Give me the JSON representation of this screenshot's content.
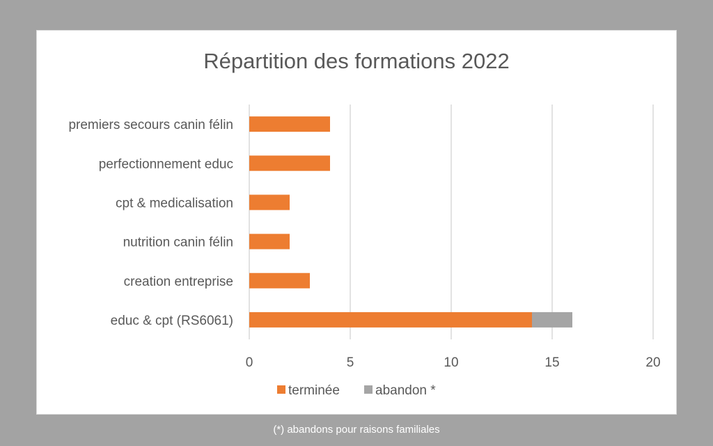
{
  "title": "Répartition des formations 2022",
  "footnote": "(*) abandons  pour raisons familiales",
  "chart_data": {
    "type": "bar",
    "orientation": "horizontal",
    "stacked": true,
    "title": "Répartition des formations 2022",
    "categories": [
      "premiers secours canin félin",
      "perfectionnement educ",
      "cpt & medicalisation",
      "nutrition canin félin",
      "creation entreprise",
      "educ & cpt (RS6061)"
    ],
    "series": [
      {
        "name": "terminée",
        "color": "#ed7d31",
        "values": [
          4,
          4,
          2,
          2,
          3,
          14
        ]
      },
      {
        "name": "abandon *",
        "color": "#a5a5a5",
        "values": [
          0,
          0,
          0,
          0,
          0,
          2
        ]
      }
    ],
    "xlim": [
      0,
      20
    ],
    "xticks": [
      0,
      5,
      10,
      15,
      20
    ],
    "grid": true,
    "legend": "bottom"
  }
}
